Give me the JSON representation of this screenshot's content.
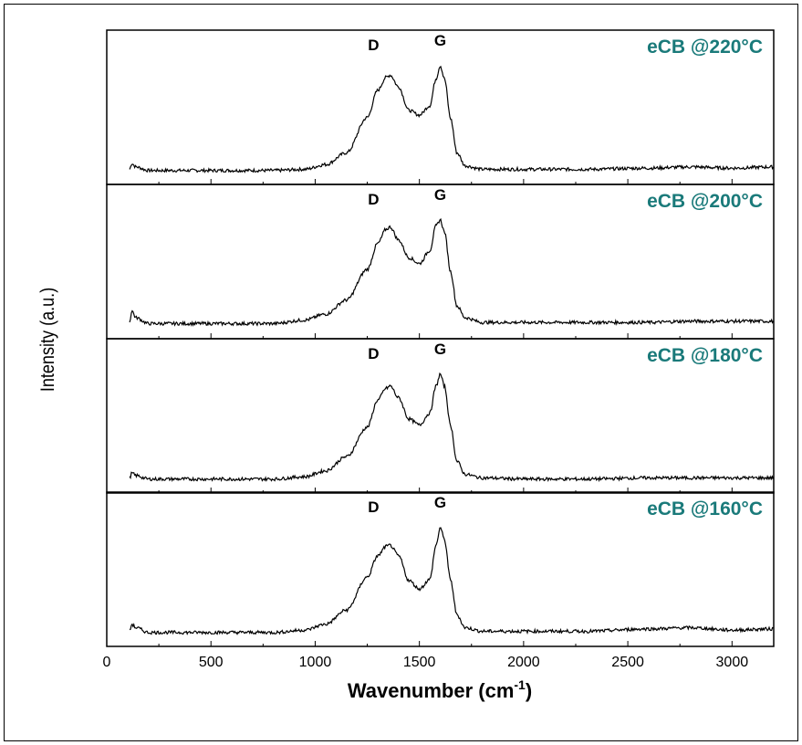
{
  "chart_data": {
    "type": "line",
    "title": "",
    "xlabel": "Wavenumber (cm",
    "xlabel_superscript": "-1",
    "xlabel_suffix": ")",
    "ylabel": "Intensity (a.u.)",
    "xlim": [
      0,
      3200
    ],
    "xticks": [
      "0",
      "500",
      "1000",
      "1500",
      "2000",
      "2500",
      "3000"
    ],
    "label_color": "#1a7a7a",
    "line_color": "#000000",
    "stacked_panels": true,
    "series": [
      {
        "name": "eCB @220°C",
        "d_label": "D",
        "g_label": "G",
        "points": [
          [
            110,
            0.02
          ],
          [
            120,
            0.07
          ],
          [
            140,
            0.04
          ],
          [
            200,
            0.01
          ],
          [
            400,
            0.01
          ],
          [
            600,
            0.01
          ],
          [
            800,
            0.01
          ],
          [
            950,
            0.02
          ],
          [
            1050,
            0.06
          ],
          [
            1150,
            0.16
          ],
          [
            1250,
            0.46
          ],
          [
            1300,
            0.69
          ],
          [
            1340,
            0.8
          ],
          [
            1360,
            0.82
          ],
          [
            1400,
            0.72
          ],
          [
            1450,
            0.52
          ],
          [
            1500,
            0.48
          ],
          [
            1550,
            0.56
          ],
          [
            1580,
            0.79
          ],
          [
            1600,
            0.9
          ],
          [
            1620,
            0.79
          ],
          [
            1650,
            0.45
          ],
          [
            1680,
            0.16
          ],
          [
            1720,
            0.05
          ],
          [
            1800,
            0.02
          ],
          [
            2000,
            0.02
          ],
          [
            2300,
            0.02
          ],
          [
            2600,
            0.03
          ],
          [
            2800,
            0.04
          ],
          [
            3000,
            0.03
          ],
          [
            3200,
            0.04
          ]
        ]
      },
      {
        "name": "eCB @200°C",
        "d_label": "D",
        "g_label": "G",
        "points": [
          [
            110,
            0.03
          ],
          [
            120,
            0.13
          ],
          [
            140,
            0.07
          ],
          [
            200,
            0.02
          ],
          [
            400,
            0.02
          ],
          [
            600,
            0.02
          ],
          [
            800,
            0.02
          ],
          [
            950,
            0.05
          ],
          [
            1050,
            0.1
          ],
          [
            1150,
            0.22
          ],
          [
            1250,
            0.48
          ],
          [
            1300,
            0.7
          ],
          [
            1340,
            0.82
          ],
          [
            1360,
            0.84
          ],
          [
            1400,
            0.73
          ],
          [
            1450,
            0.58
          ],
          [
            1500,
            0.53
          ],
          [
            1550,
            0.64
          ],
          [
            1580,
            0.85
          ],
          [
            1600,
            0.9
          ],
          [
            1620,
            0.8
          ],
          [
            1650,
            0.46
          ],
          [
            1680,
            0.17
          ],
          [
            1720,
            0.07
          ],
          [
            1800,
            0.03
          ],
          [
            2000,
            0.03
          ],
          [
            2300,
            0.03
          ],
          [
            2600,
            0.03
          ],
          [
            2800,
            0.04
          ],
          [
            3000,
            0.04
          ],
          [
            3200,
            0.04
          ]
        ]
      },
      {
        "name": "eCB @180°C",
        "d_label": "D",
        "g_label": "G",
        "points": [
          [
            110,
            0.02
          ],
          [
            120,
            0.06
          ],
          [
            140,
            0.04
          ],
          [
            200,
            0.01
          ],
          [
            400,
            0.01
          ],
          [
            600,
            0.01
          ],
          [
            800,
            0.01
          ],
          [
            950,
            0.03
          ],
          [
            1050,
            0.08
          ],
          [
            1150,
            0.2
          ],
          [
            1250,
            0.45
          ],
          [
            1300,
            0.68
          ],
          [
            1340,
            0.78
          ],
          [
            1360,
            0.8
          ],
          [
            1400,
            0.7
          ],
          [
            1450,
            0.52
          ],
          [
            1500,
            0.47
          ],
          [
            1550,
            0.57
          ],
          [
            1580,
            0.8
          ],
          [
            1600,
            0.9
          ],
          [
            1620,
            0.8
          ],
          [
            1650,
            0.46
          ],
          [
            1680,
            0.16
          ],
          [
            1720,
            0.05
          ],
          [
            1800,
            0.02
          ],
          [
            2000,
            0.01
          ],
          [
            2300,
            0.01
          ],
          [
            2600,
            0.02
          ],
          [
            2800,
            0.02
          ],
          [
            3000,
            0.02
          ],
          [
            3200,
            0.02
          ]
        ]
      },
      {
        "name": "eCB @160°C",
        "d_label": "D",
        "g_label": "G",
        "points": [
          [
            110,
            0.02
          ],
          [
            120,
            0.08
          ],
          [
            140,
            0.05
          ],
          [
            200,
            0.01
          ],
          [
            400,
            0.01
          ],
          [
            600,
            0.01
          ],
          [
            800,
            0.01
          ],
          [
            950,
            0.03
          ],
          [
            1050,
            0.08
          ],
          [
            1150,
            0.2
          ],
          [
            1250,
            0.48
          ],
          [
            1300,
            0.66
          ],
          [
            1340,
            0.74
          ],
          [
            1360,
            0.75
          ],
          [
            1400,
            0.66
          ],
          [
            1450,
            0.45
          ],
          [
            1500,
            0.38
          ],
          [
            1550,
            0.46
          ],
          [
            1580,
            0.75
          ],
          [
            1600,
            0.9
          ],
          [
            1620,
            0.8
          ],
          [
            1650,
            0.45
          ],
          [
            1680,
            0.16
          ],
          [
            1720,
            0.05
          ],
          [
            1800,
            0.02
          ],
          [
            2000,
            0.02
          ],
          [
            2300,
            0.02
          ],
          [
            2600,
            0.04
          ],
          [
            2800,
            0.05
          ],
          [
            3000,
            0.03
          ],
          [
            3200,
            0.04
          ]
        ]
      }
    ]
  }
}
